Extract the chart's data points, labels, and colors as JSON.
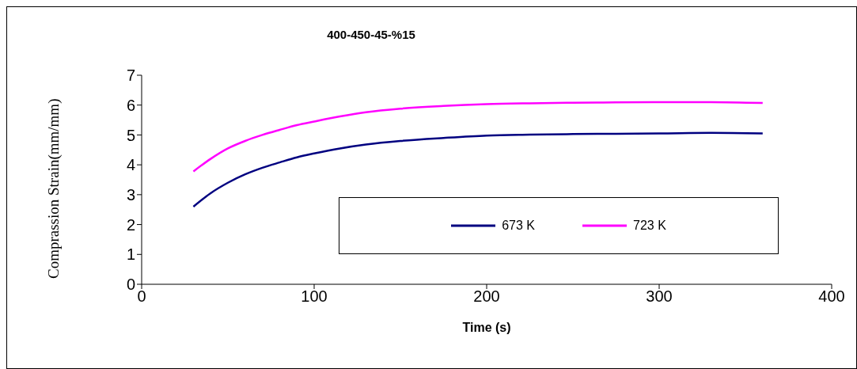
{
  "chart_data": {
    "type": "line",
    "title": "400-450-45-%15",
    "xlabel": "Time (s)",
    "ylabel": "Comprassion Strain(mm/mm)",
    "x": [
      30,
      40,
      50,
      60,
      70,
      80,
      90,
      100,
      115,
      130,
      150,
      175,
      200,
      225,
      250,
      275,
      300,
      330,
      360
    ],
    "series": [
      {
        "name": "673 K",
        "color": "#000080",
        "values": [
          2.6,
          3.05,
          3.4,
          3.68,
          3.9,
          4.08,
          4.25,
          4.38,
          4.55,
          4.68,
          4.8,
          4.9,
          4.98,
          5.01,
          5.03,
          5.04,
          5.05,
          5.07,
          5.05
        ]
      },
      {
        "name": "723 K",
        "color": "#ff00ff",
        "values": [
          3.78,
          4.2,
          4.55,
          4.8,
          5.0,
          5.17,
          5.33,
          5.45,
          5.62,
          5.76,
          5.88,
          5.97,
          6.03,
          6.06,
          6.08,
          6.09,
          6.1,
          6.1,
          6.07
        ]
      }
    ],
    "xlim": [
      0,
      400
    ],
    "xticks": [
      0,
      100,
      200,
      300,
      400
    ],
    "ylim": [
      0,
      7
    ],
    "yticks": [
      0,
      1,
      2,
      3,
      4,
      5,
      6,
      7
    ],
    "grid": false,
    "legend": "bottom right",
    "marker": "none",
    "line_style": "solid"
  }
}
